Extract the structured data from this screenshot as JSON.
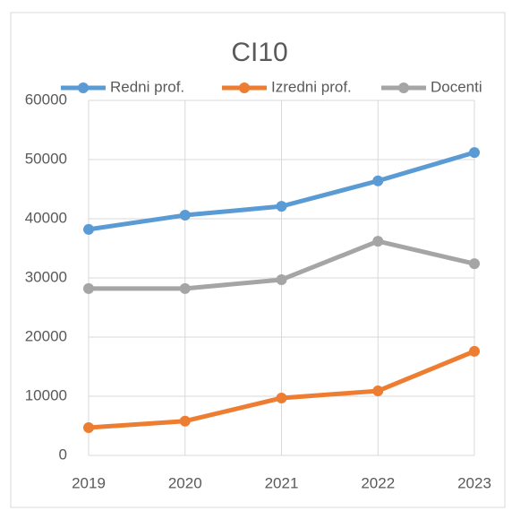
{
  "chart_data": {
    "type": "line",
    "title": "CI10",
    "categories": [
      "2019",
      "2020",
      "2021",
      "2022",
      "2023"
    ],
    "series": [
      {
        "name": "Redni prof.",
        "color": "#5b9bd5",
        "values": [
          38200,
          40600,
          42100,
          46400,
          51200
        ]
      },
      {
        "name": "Izredni prof.",
        "color": "#ed7d31",
        "values": [
          4700,
          5800,
          9700,
          10900,
          17600
        ]
      },
      {
        "name": "Docenti",
        "color": "#a5a5a5",
        "values": [
          28200,
          28200,
          29700,
          36200,
          32400
        ]
      }
    ],
    "ylim": [
      0,
      60000
    ],
    "yticks": [
      0,
      10000,
      20000,
      30000,
      40000,
      50000,
      60000
    ],
    "grid": true,
    "legend": "top"
  }
}
